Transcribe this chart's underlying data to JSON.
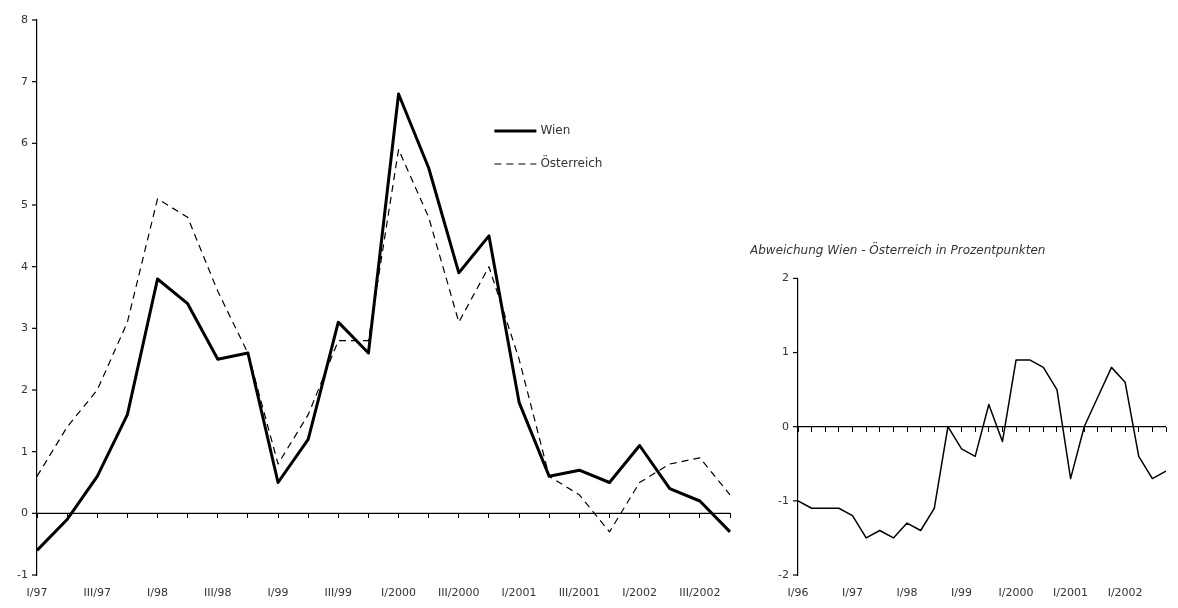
{
  "chart_data": [
    {
      "type": "line",
      "categories": [
        "I/97",
        null,
        "III/97",
        null,
        "I/98",
        null,
        "III/98",
        null,
        "I/99",
        null,
        "III/99",
        null,
        "I/2000",
        null,
        "III/2000",
        null,
        "I/2001",
        null,
        "III/2001",
        null,
        "I/2002",
        null,
        "III/2002",
        null
      ],
      "series": [
        {
          "name": "Wien",
          "color": "#000000",
          "line_style": "solid",
          "values": [
            -0.6,
            -0.1,
            0.6,
            1.6,
            3.8,
            3.4,
            2.5,
            2.6,
            0.5,
            1.2,
            3.1,
            2.6,
            6.8,
            5.6,
            3.9,
            4.5,
            1.8,
            0.6,
            0.7,
            0.5,
            1.1,
            0.4,
            0.2,
            -0.3
          ]
        },
        {
          "name": "Österreich",
          "color": "#000000",
          "line_style": "dashed",
          "values": [
            0.6,
            1.4,
            2.0,
            3.1,
            5.1,
            4.8,
            3.6,
            2.6,
            0.8,
            1.6,
            2.8,
            2.8,
            5.9,
            4.8,
            3.1,
            4.0,
            2.5,
            0.6,
            0.3,
            -0.3,
            0.5,
            0.8,
            0.9,
            0.3
          ]
        }
      ],
      "ylim": [
        -1,
        8
      ],
      "yticks": [
        -1,
        0,
        1,
        2,
        3,
        4,
        5,
        6,
        7,
        8
      ],
      "ref_lines": [
        {
          "axis": "y",
          "value": 0,
          "color": "#000000"
        }
      ],
      "grid": false,
      "legend": "top right",
      "marker": "none"
    },
    {
      "type": "line",
      "title": "Abweichung Wien - Österreich in Prozentpunkten",
      "categories": [
        "I/96",
        null,
        null,
        null,
        "I/97",
        null,
        null,
        null,
        "I/98",
        null,
        null,
        null,
        "I/99",
        null,
        null,
        null,
        "I/2000",
        null,
        null,
        null,
        "I/2001",
        null,
        null,
        null,
        "I/2002",
        null,
        null,
        null
      ],
      "series": [
        {
          "color": "#000000",
          "line_style": "solid",
          "values": [
            -1.0,
            -1.1,
            -1.1,
            -1.1,
            -1.2,
            -1.5,
            -1.4,
            -1.5,
            -1.3,
            -1.4,
            -1.1,
            0.0,
            -0.3,
            -0.4,
            0.3,
            -0.2,
            0.9,
            0.9,
            0.8,
            0.5,
            -0.7,
            0.0,
            0.4,
            0.8,
            0.6,
            -0.4,
            -0.7,
            -0.6
          ]
        }
      ],
      "ylim": [
        -2,
        2
      ],
      "yticks": [
        -2,
        -1,
        0,
        1,
        2
      ],
      "ref_lines": [
        {
          "axis": "y",
          "value": 0,
          "color": "#000000"
        }
      ],
      "grid": false,
      "marker": "none"
    }
  ]
}
